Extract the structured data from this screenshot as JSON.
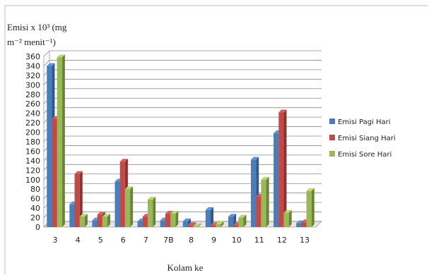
{
  "chart_data": {
    "type": "bar",
    "ylabel_line1": "Emisi x 10³ (mg",
    "ylabel_line2": "m⁻² menit⁻¹)",
    "xlabel": "Kolam ke",
    "ylim": [
      0,
      360
    ],
    "ytick_step": 20,
    "grid": true,
    "legend_position": "right",
    "categories": [
      "3",
      "4",
      "5",
      "6",
      "7",
      "7B",
      "8",
      "9",
      "10",
      "11",
      "12",
      "13"
    ],
    "series": [
      {
        "name": "Emisi Pagi Hari",
        "color": "#4a7ebb",
        "values": [
          340,
          48,
          14,
          96,
          12,
          14,
          12,
          36,
          22,
          142,
          198,
          8
        ]
      },
      {
        "name": "Emisi Siang Hari",
        "color": "#be4b48",
        "values": [
          228,
          112,
          26,
          138,
          22,
          28,
          4,
          4,
          4,
          64,
          242,
          10
        ]
      },
      {
        "name": "Emisi Sore Hari",
        "color": "#98b954",
        "values": [
          358,
          22,
          22,
          80,
          58,
          28,
          2,
          6,
          20,
          100,
          30,
          76
        ]
      }
    ]
  }
}
